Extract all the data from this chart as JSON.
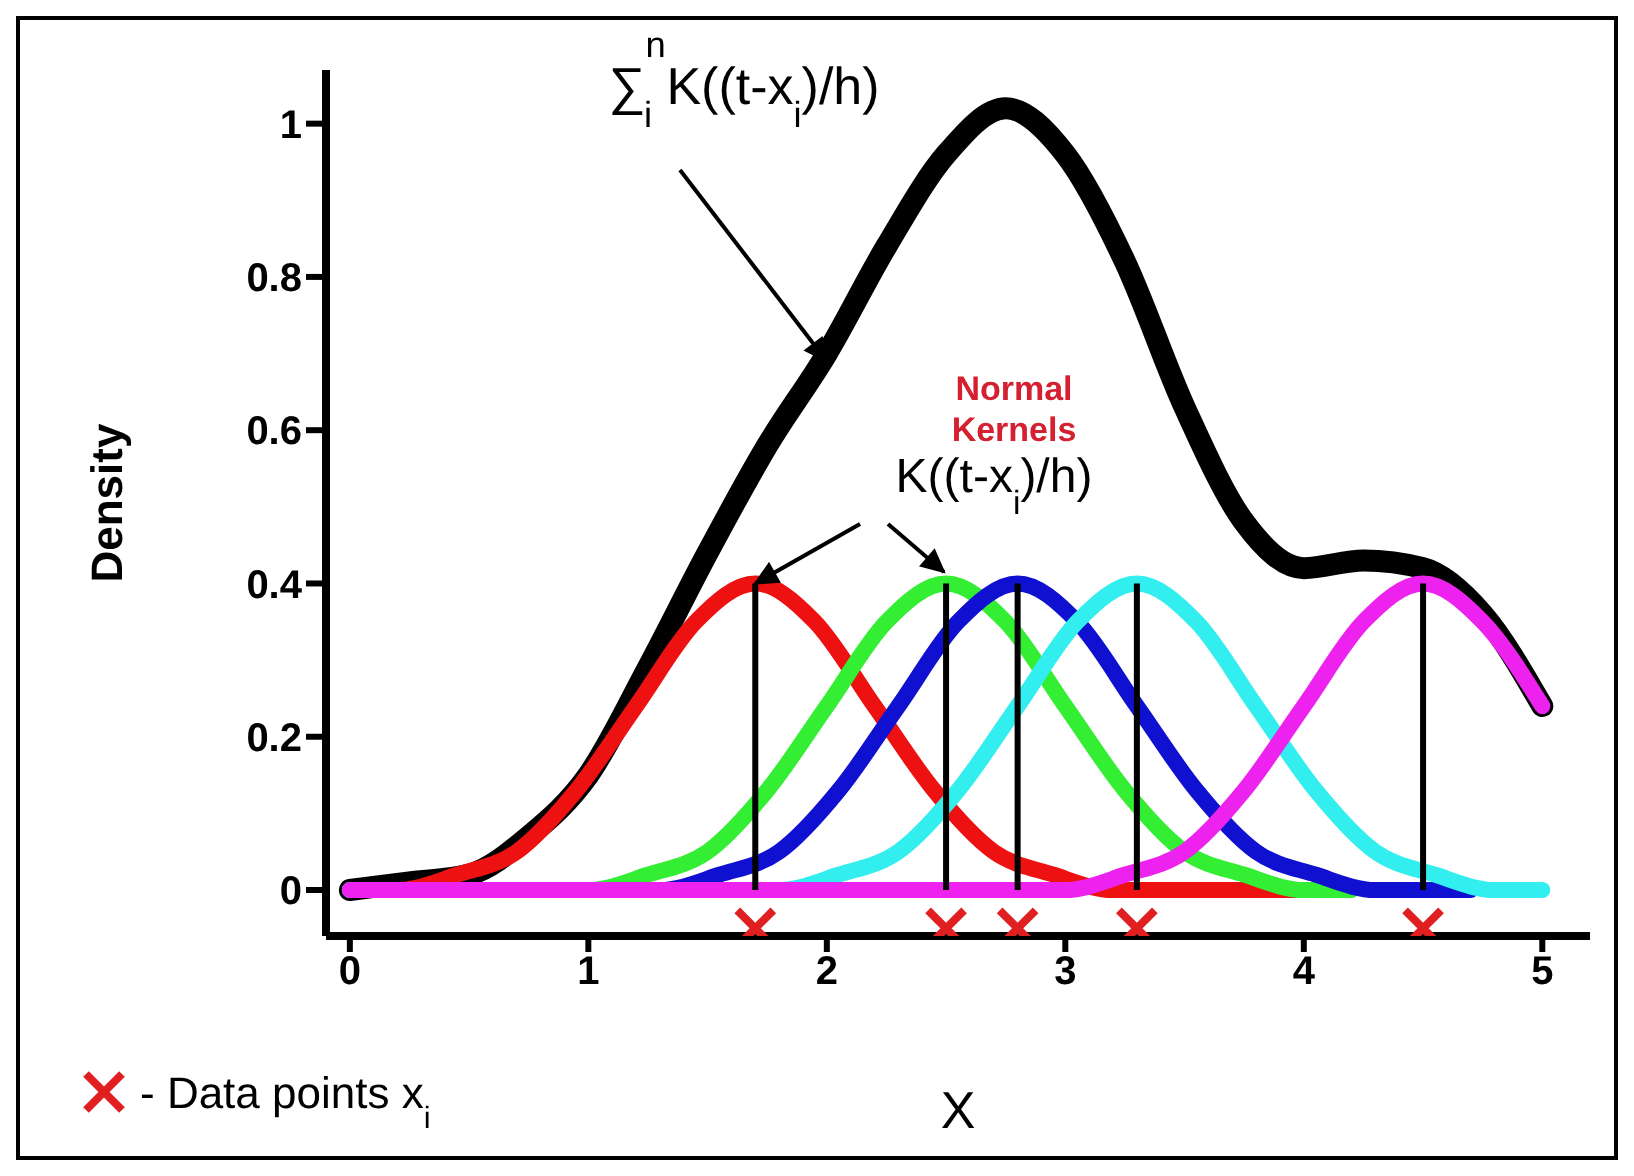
{
  "chart_data": {
    "type": "line",
    "xlabel": "X",
    "ylabel": "Density",
    "xlim": [
      -0.1,
      5.2
    ],
    "ylim": [
      -0.06,
      1.07
    ],
    "xticks": [
      0,
      1,
      2,
      3,
      4,
      5
    ],
    "yticks": [
      0,
      0.2,
      0.4,
      0.6,
      0.8,
      1
    ],
    "legend": "bottom left",
    "line_style": "solid",
    "series": [
      {
        "color": "#000000",
        "x": [
          0,
          0.25,
          0.5,
          0.75,
          1,
          1.25,
          1.5,
          1.75,
          2,
          2.25,
          2.5,
          2.75,
          3,
          3.25,
          3.5,
          3.75,
          4,
          4.25,
          4.5,
          4.75,
          5
        ],
        "values": [
          0,
          0.01,
          0.02,
          0.07,
          0.15,
          0.29,
          0.44,
          0.58,
          0.7,
          0.84,
          0.96,
          1.02,
          0.96,
          0.82,
          0.63,
          0.48,
          0.42,
          0.43,
          0.42,
          0.36,
          0.24
        ]
      },
      {
        "color": "#ee1111",
        "x": [
          0,
          0.2,
          0.45,
          0.7,
          0.95,
          1.2,
          1.45,
          1.7,
          1.95,
          2.2,
          2.45,
          2.7,
          2.95,
          3.2,
          4
        ],
        "values": [
          0,
          0,
          0.02,
          0.05,
          0.13,
          0.24,
          0.35,
          0.4,
          0.35,
          0.24,
          0.13,
          0.05,
          0.02,
          0,
          0
        ]
      },
      {
        "color": "#33ee33",
        "x": [
          0,
          1,
          1.25,
          1.5,
          1.75,
          2,
          2.25,
          2.5,
          2.75,
          3,
          3.25,
          3.5,
          3.75,
          4,
          4.2
        ],
        "values": [
          0,
          0,
          0.02,
          0.05,
          0.13,
          0.24,
          0.35,
          0.4,
          0.35,
          0.24,
          0.13,
          0.05,
          0.02,
          0,
          0
        ]
      },
      {
        "color": "#1010d0",
        "x": [
          0,
          1.3,
          1.55,
          1.8,
          2.05,
          2.3,
          2.55,
          2.8,
          3.05,
          3.3,
          3.55,
          3.8,
          4.05,
          4.3,
          4.7
        ],
        "values": [
          0,
          0,
          0.02,
          0.05,
          0.13,
          0.24,
          0.35,
          0.4,
          0.35,
          0.24,
          0.13,
          0.05,
          0.02,
          0,
          0
        ]
      },
      {
        "color": "#33eeee",
        "x": [
          0,
          1.8,
          2.05,
          2.3,
          2.55,
          2.8,
          3.05,
          3.3,
          3.55,
          3.8,
          4.05,
          4.3,
          4.55,
          4.8,
          5
        ],
        "values": [
          0,
          0,
          0.02,
          0.05,
          0.13,
          0.24,
          0.35,
          0.4,
          0.35,
          0.24,
          0.13,
          0.05,
          0.02,
          0,
          0
        ]
      },
      {
        "color": "#ee22ee",
        "x": [
          0,
          3,
          3.25,
          3.5,
          3.75,
          4,
          4.25,
          4.5,
          4.75,
          5
        ],
        "values": [
          0,
          0,
          0.02,
          0.05,
          0.13,
          0.24,
          0.35,
          0.4,
          0.35,
          0.24
        ]
      },
      {
        "type": "bar",
        "color": "#000000",
        "x": [
          1.7,
          2.5,
          2.8,
          3.3,
          4.5
        ],
        "values": [
          0.4,
          0.4,
          0.4,
          0.4,
          0.4
        ]
      },
      {
        "type": "scatter",
        "name": "- Data points x$_{i}$",
        "marker": "cross",
        "color": "#e02020",
        "x": [
          1.7,
          2.5,
          2.8,
          3.3,
          4.5
        ],
        "values": [
          -0.05,
          -0.05,
          -0.05,
          -0.05,
          -0.05
        ]
      }
    ],
    "annotations": [
      {
        "text": "∑$^{n}$$_{i}$ K((t-x$_{i}$)/h)",
        "x": 2.0,
        "y": 0.69
      },
      "Normal Kernels",
      {
        "text": "K((t-x$_{i}$)/h)",
        "x": 1.7,
        "y": 0.4
      }
    ]
  }
}
